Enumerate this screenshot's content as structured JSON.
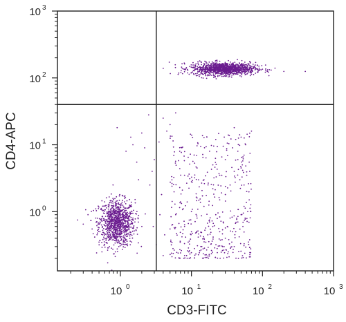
{
  "chart_data": {
    "type": "scatter",
    "title": "",
    "xlabel": "CD3-FITC",
    "ylabel": "CD4-APC",
    "xscale": "log",
    "yscale": "log",
    "xlim": [
      0.13,
      1000
    ],
    "ylim": [
      0.13,
      1000
    ],
    "x_ticks": [
      {
        "base": "10",
        "exp": "0",
        "value": 1
      },
      {
        "base": "10",
        "exp": "1",
        "value": 10
      },
      {
        "base": "10",
        "exp": "2",
        "value": 100
      },
      {
        "base": "10",
        "exp": "3",
        "value": 1000
      }
    ],
    "y_ticks": [
      {
        "base": "10",
        "exp": "0",
        "value": 1
      },
      {
        "base": "10",
        "exp": "1",
        "value": 10
      },
      {
        "base": "10",
        "exp": "2",
        "value": 100
      },
      {
        "base": "10",
        "exp": "3",
        "value": 1000
      }
    ],
    "quadrant_gates": {
      "x": 3.2,
      "y": 40
    },
    "point_color": "#6a1b8f",
    "grid": false,
    "legend": "none",
    "populations": [
      {
        "x_range": [
          0.5,
          1.6
        ],
        "y_range": [
          0.3,
          1.5
        ],
        "description_count": 900
      },
      {
        "x_range": [
          10,
          80
        ],
        "y_range": [
          110,
          170
        ],
        "description_count": 1100
      },
      {
        "x_range": [
          5,
          70
        ],
        "y_range": [
          0.2,
          15
        ],
        "description_count": 400
      }
    ],
    "points": [
      [
        0.55,
        0.72
      ],
      [
        0.62,
        0.85
      ],
      [
        0.7,
        0.6
      ],
      [
        0.78,
        0.95
      ],
      [
        0.85,
        0.7
      ],
      [
        0.9,
        0.55
      ],
      [
        0.95,
        0.8
      ],
      [
        1.0,
        0.65
      ],
      [
        1.05,
        0.9
      ],
      [
        1.1,
        0.75
      ],
      [
        1.2,
        0.6
      ],
      [
        1.3,
        0.85
      ],
      [
        0.65,
        0.45
      ],
      [
        0.75,
        0.4
      ],
      [
        0.8,
        1.1
      ],
      [
        0.88,
        1.25
      ],
      [
        0.98,
        1.0
      ],
      [
        1.15,
        1.05
      ],
      [
        0.58,
        0.95
      ],
      [
        0.68,
        1.2
      ],
      [
        0.72,
        0.52
      ],
      [
        0.82,
        0.62
      ],
      [
        0.92,
        0.42
      ],
      [
        1.02,
        0.5
      ],
      [
        1.12,
        0.58
      ],
      [
        0.6,
        0.62
      ],
      [
        0.7,
        0.78
      ],
      [
        0.86,
        0.88
      ],
      [
        0.94,
        0.68
      ],
      [
        1.08,
        0.66
      ],
      [
        0.52,
        0.68
      ],
      [
        0.66,
        0.7
      ],
      [
        0.76,
        0.82
      ],
      [
        0.84,
        0.76
      ],
      [
        0.96,
        0.74
      ],
      [
        1.04,
        0.82
      ],
      [
        1.18,
        0.72
      ],
      [
        1.25,
        0.9
      ],
      [
        0.74,
        0.66
      ],
      [
        0.8,
        0.58
      ],
      [
        0.9,
        0.92
      ],
      [
        0.99,
        0.58
      ],
      [
        1.06,
        0.7
      ],
      [
        0.63,
        0.55
      ],
      [
        0.77,
        0.5
      ],
      [
        0.87,
        0.46
      ],
      [
        0.93,
        0.98
      ],
      [
        1.14,
        0.88
      ],
      [
        0.69,
        1.02
      ],
      [
        0.83,
        1.08
      ],
      [
        0.4,
        0.55
      ],
      [
        0.45,
        0.8
      ],
      [
        1.4,
        0.65
      ],
      [
        1.5,
        0.8
      ],
      [
        0.35,
        0.9
      ],
      [
        0.5,
        0.35
      ],
      [
        0.95,
        0.3
      ],
      [
        1.1,
        0.35
      ],
      [
        0.85,
        0.25
      ],
      [
        0.7,
        0.3
      ],
      [
        0.3,
        0.65
      ],
      [
        0.25,
        0.75
      ],
      [
        1.6,
        0.7
      ],
      [
        0.6,
        1.4
      ],
      [
        0.9,
        1.45
      ],
      [
        1.0,
        1.3
      ],
      [
        0.75,
        1.35
      ],
      [
        0.45,
        1.1
      ],
      [
        1.3,
        1.15
      ],
      [
        0.55,
        0.25
      ],
      [
        20,
        130
      ],
      [
        25,
        140
      ],
      [
        30,
        125
      ],
      [
        35,
        150
      ],
      [
        40,
        135
      ],
      [
        45,
        145
      ],
      [
        50,
        130
      ],
      [
        55,
        140
      ],
      [
        60,
        125
      ],
      [
        28,
        155
      ],
      [
        33,
        138
      ],
      [
        38,
        128
      ],
      [
        42,
        142
      ],
      [
        48,
        152
      ],
      [
        52,
        136
      ],
      [
        18,
        128
      ],
      [
        22,
        145
      ],
      [
        27,
        122
      ],
      [
        31,
        160
      ],
      [
        36,
        132
      ],
      [
        44,
        127
      ],
      [
        58,
        148
      ],
      [
        62,
        135
      ],
      [
        15,
        132
      ],
      [
        17,
        142
      ],
      [
        24,
        118
      ],
      [
        29,
        148
      ],
      [
        34,
        122
      ],
      [
        39,
        158
      ],
      [
        46,
        138
      ],
      [
        51,
        124
      ],
      [
        56,
        152
      ],
      [
        65,
        140
      ],
      [
        70,
        130
      ],
      [
        12,
        135
      ],
      [
        14,
        125
      ],
      [
        75,
        145
      ],
      [
        80,
        138
      ],
      [
        26,
        112
      ],
      [
        43,
        115
      ],
      [
        200,
        125
      ],
      [
        400,
        125
      ],
      [
        150,
        140
      ],
      [
        90,
        130
      ],
      [
        100,
        135
      ],
      [
        8,
        0.6
      ],
      [
        10,
        0.5
      ],
      [
        12,
        0.8
      ],
      [
        15,
        0.4
      ],
      [
        18,
        0.7
      ],
      [
        20,
        0.6
      ],
      [
        22,
        0.9
      ],
      [
        25,
        0.5
      ],
      [
        28,
        0.7
      ],
      [
        30,
        0.4
      ],
      [
        32,
        0.6
      ],
      [
        35,
        0.8
      ],
      [
        38,
        0.5
      ],
      [
        40,
        0.3
      ],
      [
        45,
        0.7
      ],
      [
        50,
        0.9
      ],
      [
        55,
        1.2
      ],
      [
        60,
        2.0
      ],
      [
        48,
        3.0
      ],
      [
        52,
        5.0
      ],
      [
        45,
        8.0
      ],
      [
        58,
        10
      ],
      [
        40,
        4.0
      ],
      [
        35,
        2.5
      ],
      [
        30,
        1.8
      ],
      [
        25,
        1.5
      ],
      [
        20,
        2.2
      ],
      [
        15,
        1.2
      ],
      [
        12,
        1.6
      ],
      [
        10,
        2.8
      ],
      [
        8,
        3.5
      ],
      [
        6,
        0.9
      ],
      [
        7,
        1.4
      ],
      [
        9,
        0.35
      ],
      [
        11,
        0.28
      ],
      [
        14,
        0.3
      ],
      [
        17,
        0.45
      ],
      [
        19,
        0.33
      ],
      [
        23,
        0.28
      ],
      [
        27,
        0.38
      ],
      [
        33,
        0.25
      ],
      [
        37,
        0.35
      ],
      [
        42,
        0.5
      ],
      [
        47,
        0.42
      ],
      [
        53,
        0.6
      ],
      [
        57,
        0.8
      ],
      [
        62,
        1.0
      ],
      [
        65,
        1.5
      ],
      [
        55,
        2.5
      ],
      [
        50,
        4.5
      ],
      [
        45,
        6.0
      ],
      [
        42,
        12
      ],
      [
        38,
        9.0
      ],
      [
        50,
        13
      ],
      [
        55,
        7.0
      ],
      [
        60,
        3.5
      ],
      [
        65,
        5.5
      ],
      [
        70,
        16
      ],
      [
        30,
        6.0
      ],
      [
        25,
        3.5
      ],
      [
        20,
        5.0
      ],
      [
        18,
        8.0
      ],
      [
        15,
        3.0
      ],
      [
        12,
        4.5
      ],
      [
        10,
        1.0
      ],
      [
        9,
        6.5
      ],
      [
        22,
        12
      ],
      [
        28,
        9.5
      ],
      [
        33,
        14
      ],
      [
        40,
        18
      ],
      [
        5,
        20
      ],
      [
        4,
        25
      ],
      [
        6,
        30
      ],
      [
        2.5,
        28
      ],
      [
        2,
        15
      ],
      [
        1.5,
        10
      ],
      [
        3,
        6
      ],
      [
        2.8,
        4
      ],
      [
        1.8,
        3
      ],
      [
        1.4,
        13
      ],
      [
        1.2,
        8
      ],
      [
        2.2,
        9
      ],
      [
        3.5,
        11
      ],
      [
        4.5,
        16
      ],
      [
        0.9,
        18
      ],
      [
        1.7,
        5.5
      ],
      [
        2.6,
        2.5
      ],
      [
        3.8,
        1.8
      ],
      [
        4.2,
        0.45
      ],
      [
        5.5,
        0.28
      ],
      [
        4,
        0.22
      ],
      [
        6.5,
        0.24
      ],
      [
        3.2,
        0.32
      ],
      [
        2.9,
        0.6
      ],
      [
        3.6,
        0.9
      ],
      [
        5.0,
        0.55
      ]
    ]
  }
}
